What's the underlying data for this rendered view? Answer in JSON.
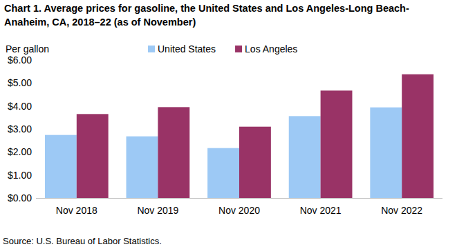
{
  "chart_data": {
    "type": "bar",
    "title": "Chart 1. Average prices for gasoline, the United States and Los Angeles-Long Beach-Anaheim, CA, 2018–22 (as of November)",
    "y_label": "Per gallon",
    "source": "Source: U.S. Bureau of Labor Statistics.",
    "categories": [
      "Nov 2018",
      "Nov 2019",
      "Nov 2020",
      "Nov 2021",
      "Nov 2022"
    ],
    "series": [
      {
        "name": "United States",
        "color": "#9dc9f5",
        "values": [
          2.74,
          2.68,
          2.17,
          3.56,
          3.94
        ]
      },
      {
        "name": "Los Angeles",
        "color": "#993366",
        "values": [
          3.65,
          3.95,
          3.1,
          4.67,
          5.38
        ]
      }
    ],
    "ylim": [
      0,
      6
    ],
    "yticks": [
      {
        "value": 0,
        "label": "$0.00"
      },
      {
        "value": 1,
        "label": "$1.00"
      },
      {
        "value": 2,
        "label": "$2.00"
      },
      {
        "value": 3,
        "label": "$3.00"
      },
      {
        "value": 4,
        "label": "$4.00"
      },
      {
        "value": 5,
        "label": "$5.00"
      },
      {
        "value": 6,
        "label": "$6.00"
      }
    ],
    "grid": false,
    "legend": "top"
  }
}
